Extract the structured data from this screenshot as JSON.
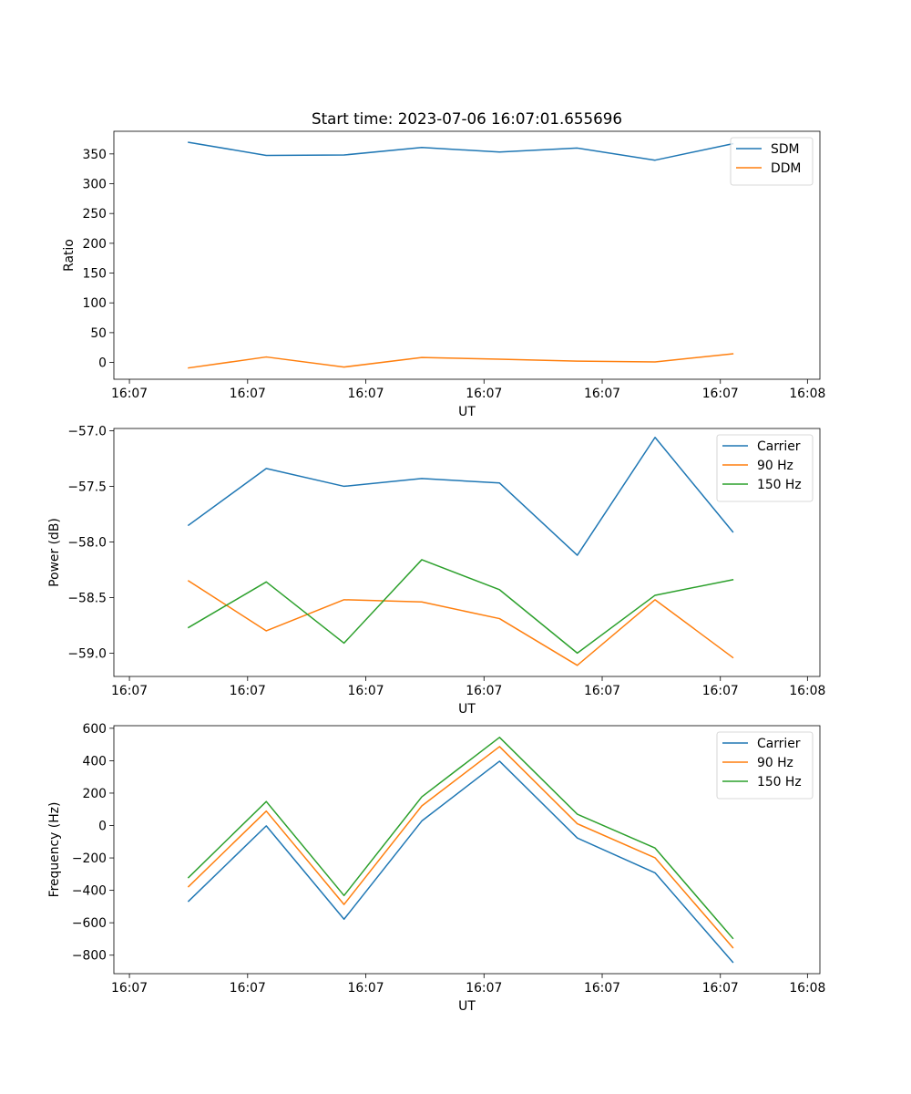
{
  "colors": {
    "c0": "#1f77b4",
    "c1": "#ff7f0e",
    "c2": "#2ca02c"
  },
  "chart_data": [
    {
      "type": "line",
      "title": "Start time: 2023-07-06 16:07:01.655696",
      "xlabel": "UT",
      "ylabel": "Ratio",
      "x": [
        1,
        2,
        3,
        4,
        5,
        6,
        7,
        8
      ],
      "xlim": [
        0.04,
        9.12
      ],
      "x_ticks": [
        {
          "value": 0.24,
          "label": "16:07"
        },
        {
          "value": 1.76,
          "label": "16:07"
        },
        {
          "value": 3.28,
          "label": "16:07"
        },
        {
          "value": 4.8,
          "label": "16:07"
        },
        {
          "value": 6.32,
          "label": "16:07"
        },
        {
          "value": 7.84,
          "label": "16:07"
        },
        {
          "value": 8.96,
          "label": "16:08"
        }
      ],
      "ylim": [
        -28.2,
        388
      ],
      "y_ticks": [
        0,
        50,
        100,
        150,
        200,
        250,
        300,
        350
      ],
      "legend": "top-right",
      "series": [
        {
          "name": "SDM",
          "color": "#1f77b4",
          "values": [
            369.5,
            347.5,
            348.2,
            360.8,
            353.1,
            359.8,
            339.5,
            367.1
          ]
        },
        {
          "name": "DDM",
          "color": "#ff7f0e",
          "values": [
            -9.2,
            9.2,
            -7.7,
            8.4,
            5.4,
            2.3,
            0.8,
            14.6
          ]
        }
      ]
    },
    {
      "type": "line",
      "title": "",
      "xlabel": "UT",
      "ylabel": "Power (dB)",
      "x": [
        1,
        2,
        3,
        4,
        5,
        6,
        7,
        8
      ],
      "xlim": [
        0.04,
        9.12
      ],
      "x_ticks": [
        {
          "value": 0.24,
          "label": "16:07"
        },
        {
          "value": 1.76,
          "label": "16:07"
        },
        {
          "value": 3.28,
          "label": "16:07"
        },
        {
          "value": 4.8,
          "label": "16:07"
        },
        {
          "value": 6.32,
          "label": "16:07"
        },
        {
          "value": 7.84,
          "label": "16:07"
        },
        {
          "value": 8.96,
          "label": "16:08"
        }
      ],
      "ylim": [
        -59.21,
        -56.98
      ],
      "y_ticks": [
        -59.0,
        -58.5,
        -58.0,
        -57.5,
        -57.0
      ],
      "y_tick_labels": [
        "−59.0",
        "−58.5",
        "−58.0",
        "−57.5",
        "−57.0"
      ],
      "legend": "top-right",
      "series": [
        {
          "name": "Carrier",
          "color": "#1f77b4",
          "values": [
            -57.85,
            -57.34,
            -57.5,
            -57.43,
            -57.47,
            -58.12,
            -57.06,
            -57.91
          ]
        },
        {
          "name": "90 Hz",
          "color": "#ff7f0e",
          "values": [
            -58.35,
            -58.8,
            -58.52,
            -58.54,
            -58.69,
            -59.11,
            -58.52,
            -59.04
          ]
        },
        {
          "name": "150 Hz",
          "color": "#2ca02c",
          "values": [
            -58.77,
            -58.36,
            -58.91,
            -58.16,
            -58.43,
            -59.0,
            -58.48,
            -58.34
          ]
        }
      ]
    },
    {
      "type": "line",
      "title": "",
      "xlabel": "UT",
      "ylabel": "Frequency (Hz)",
      "x": [
        1,
        2,
        3,
        4,
        5,
        6,
        7,
        8
      ],
      "xlim": [
        0.04,
        9.12
      ],
      "x_ticks": [
        {
          "value": 0.24,
          "label": "16:07"
        },
        {
          "value": 1.76,
          "label": "16:07"
        },
        {
          "value": 3.28,
          "label": "16:07"
        },
        {
          "value": 4.8,
          "label": "16:07"
        },
        {
          "value": 6.32,
          "label": "16:07"
        },
        {
          "value": 7.84,
          "label": "16:07"
        },
        {
          "value": 8.96,
          "label": "16:08"
        }
      ],
      "ylim": [
        -914,
        616
      ],
      "y_ticks": [
        -800,
        -600,
        -400,
        -200,
        0,
        200,
        400,
        600
      ],
      "y_tick_labels": [
        "−800",
        "−600",
        "−400",
        "−200",
        "0",
        "200",
        "400",
        "600"
      ],
      "legend": "top-right",
      "series": [
        {
          "name": "Carrier",
          "color": "#1f77b4",
          "values": [
            -467,
            -2,
            -578,
            28,
            397,
            -77,
            -292,
            -843
          ]
        },
        {
          "name": "90 Hz",
          "color": "#ff7f0e",
          "values": [
            -377,
            89,
            -487,
            121,
            487,
            11,
            -199,
            -753
          ]
        },
        {
          "name": "150 Hz",
          "color": "#2ca02c",
          "values": [
            -321,
            148,
            -432,
            177,
            544,
            70,
            -139,
            -696
          ]
        }
      ]
    }
  ]
}
